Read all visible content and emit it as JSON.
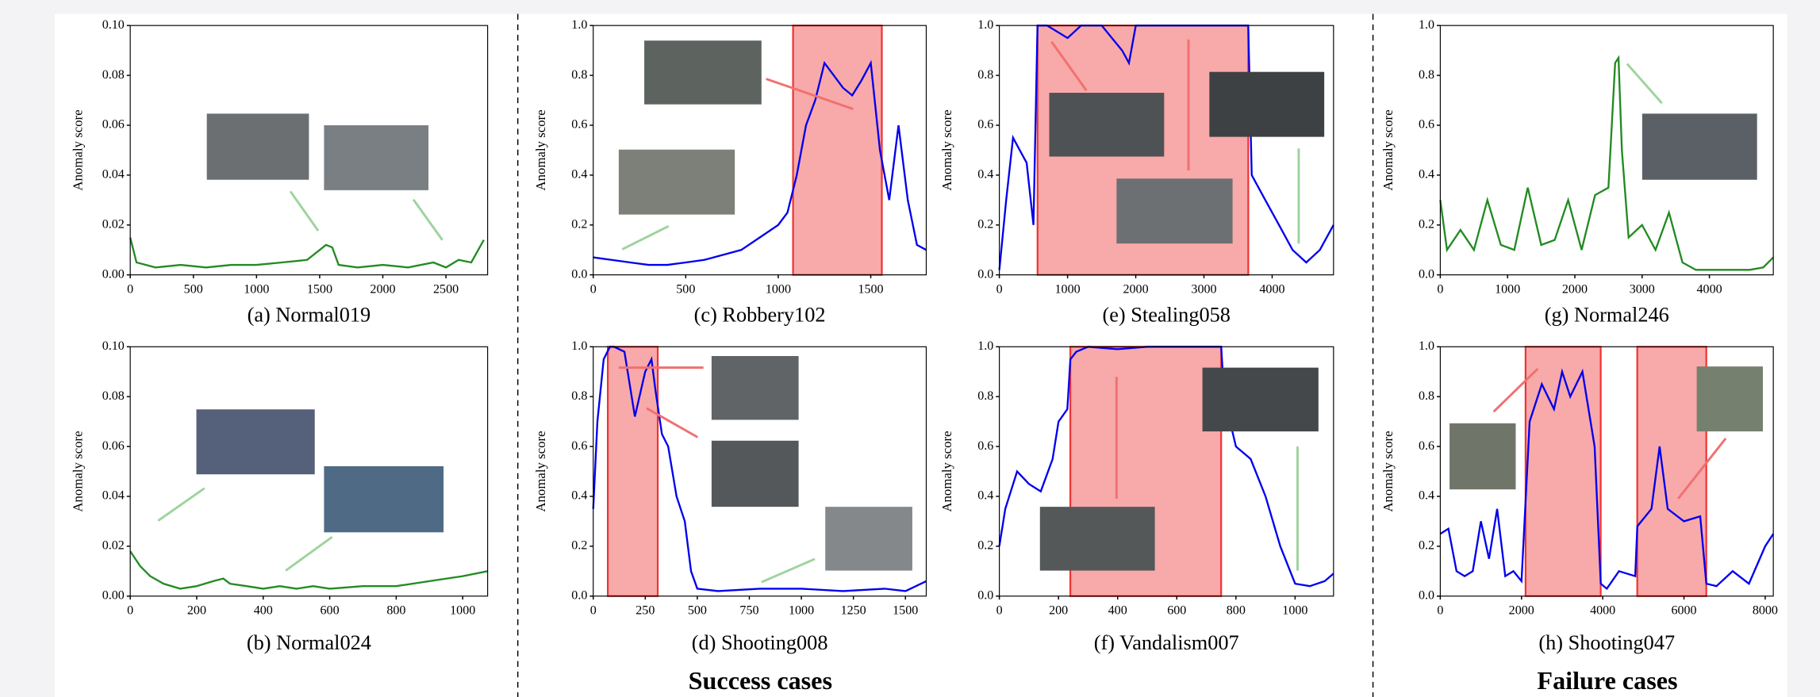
{
  "chart_data": [
    {
      "type": "line",
      "caption": "(a) Normal019",
      "ylabel": "Anomaly score",
      "color": "#228b22",
      "x": [
        0,
        50,
        200,
        400,
        600,
        800,
        1000,
        1200,
        1400,
        1500,
        1550,
        1600,
        1650,
        1800,
        2000,
        2200,
        2400,
        2500,
        2600,
        2700,
        2800
      ],
      "values": [
        0.015,
        0.005,
        0.003,
        0.004,
        0.003,
        0.004,
        0.004,
        0.005,
        0.006,
        0.01,
        0.012,
        0.011,
        0.004,
        0.003,
        0.004,
        0.003,
        0.005,
        0.003,
        0.006,
        0.005,
        0.014
      ],
      "xlim": [
        0,
        2830
      ],
      "xticks": [
        0,
        500,
        1000,
        1500,
        2000,
        2500
      ],
      "ylim": [
        0,
        0.1
      ],
      "yticks": [
        {
          "value": 0,
          "label": "0.00"
        },
        {
          "value": 0.02,
          "label": "0.02"
        },
        {
          "value": 0.04,
          "label": "0.04"
        },
        {
          "value": 0.06,
          "label": "0.06"
        },
        {
          "value": 0.08,
          "label": "0.08"
        },
        {
          "value": 0.1,
          "label": "0.10"
        }
      ]
    },
    {
      "type": "line",
      "caption": "(b) Normal024",
      "ylabel": "Anomaly score",
      "color": "#228b22",
      "x": [
        0,
        30,
        60,
        100,
        150,
        200,
        250,
        280,
        300,
        350,
        400,
        450,
        500,
        550,
        600,
        700,
        800,
        900,
        1000,
        1075
      ],
      "values": [
        0.018,
        0.012,
        0.008,
        0.005,
        0.003,
        0.004,
        0.006,
        0.007,
        0.005,
        0.004,
        0.003,
        0.004,
        0.003,
        0.004,
        0.003,
        0.004,
        0.004,
        0.006,
        0.008,
        0.01
      ],
      "xlim": [
        0,
        1075
      ],
      "xticks": [
        0,
        200,
        400,
        600,
        800,
        1000
      ],
      "ylim": [
        0,
        0.1
      ],
      "yticks": [
        {
          "value": 0,
          "label": "0.00"
        },
        {
          "value": 0.02,
          "label": "0.02"
        },
        {
          "value": 0.04,
          "label": "0.04"
        },
        {
          "value": 0.06,
          "label": "0.06"
        },
        {
          "value": 0.08,
          "label": "0.08"
        },
        {
          "value": 0.1,
          "label": "0.10"
        }
      ]
    },
    {
      "type": "line",
      "caption": "(c) Robbery102",
      "ylabel": "Anomaly score",
      "color": "#0000ee",
      "anomaly_spans": [
        [
          1080,
          1560
        ]
      ],
      "span_color": "#f8a9a9",
      "x": [
        0,
        100,
        200,
        300,
        400,
        500,
        600,
        700,
        800,
        900,
        1000,
        1050,
        1100,
        1150,
        1200,
        1250,
        1300,
        1350,
        1400,
        1450,
        1500,
        1550,
        1600,
        1650,
        1700,
        1750,
        1800
      ],
      "values": [
        0.07,
        0.06,
        0.05,
        0.04,
        0.04,
        0.05,
        0.06,
        0.08,
        0.1,
        0.15,
        0.2,
        0.25,
        0.4,
        0.6,
        0.7,
        0.85,
        0.8,
        0.75,
        0.72,
        0.78,
        0.85,
        0.5,
        0.3,
        0.6,
        0.3,
        0.12,
        0.1
      ],
      "xlim": [
        0,
        1800
      ],
      "xticks": [
        0,
        500,
        1000,
        1500
      ],
      "ylim": [
        0,
        1
      ],
      "yticks": [
        {
          "value": 0,
          "label": "0.0"
        },
        {
          "value": 0.2,
          "label": "0.2"
        },
        {
          "value": 0.4,
          "label": "0.4"
        },
        {
          "value": 0.6,
          "label": "0.6"
        },
        {
          "value": 0.8,
          "label": "0.8"
        },
        {
          "value": 1,
          "label": "1.0"
        }
      ]
    },
    {
      "type": "line",
      "caption": "(d) Shooting008",
      "ylabel": "Anomaly score",
      "color": "#0000ee",
      "anomaly_spans": [
        [
          70,
          310
        ]
      ],
      "span_color": "#f8a9a9",
      "x": [
        0,
        20,
        50,
        80,
        100,
        150,
        200,
        250,
        280,
        300,
        330,
        360,
        400,
        440,
        470,
        500,
        600,
        800,
        1000,
        1200,
        1400,
        1500,
        1600
      ],
      "values": [
        0.35,
        0.7,
        0.95,
        1.0,
        1.0,
        0.98,
        0.72,
        0.9,
        0.95,
        0.82,
        0.65,
        0.6,
        0.4,
        0.3,
        0.1,
        0.03,
        0.02,
        0.03,
        0.03,
        0.02,
        0.03,
        0.02,
        0.06
      ],
      "xlim": [
        0,
        1600
      ],
      "xticks": [
        0,
        250,
        500,
        750,
        1000,
        1250,
        1500
      ],
      "ylim": [
        0,
        1
      ],
      "yticks": [
        {
          "value": 0,
          "label": "0.0"
        },
        {
          "value": 0.2,
          "label": "0.2"
        },
        {
          "value": 0.4,
          "label": "0.4"
        },
        {
          "value": 0.6,
          "label": "0.6"
        },
        {
          "value": 0.8,
          "label": "0.8"
        },
        {
          "value": 1,
          "label": "1.0"
        }
      ]
    },
    {
      "type": "line",
      "caption": "(e) Stealing058",
      "ylabel": "Anomaly score",
      "color": "#0000ee",
      "anomaly_spans": [
        [
          560,
          3650
        ]
      ],
      "span_color": "#f8a9a9",
      "x": [
        0,
        100,
        200,
        300,
        400,
        500,
        560,
        700,
        1000,
        1200,
        1500,
        1800,
        1900,
        2000,
        2500,
        3000,
        3500,
        3650,
        3700,
        3900,
        4100,
        4300,
        4500,
        4700,
        4900
      ],
      "values": [
        0.02,
        0.3,
        0.55,
        0.5,
        0.45,
        0.2,
        1.0,
        1.0,
        0.95,
        1.0,
        1.0,
        0.9,
        0.85,
        1.0,
        1.0,
        1.0,
        1.0,
        1.0,
        0.4,
        0.3,
        0.2,
        0.1,
        0.05,
        0.1,
        0.2
      ],
      "xlim": [
        0,
        4900
      ],
      "xticks": [
        0,
        1000,
        2000,
        3000,
        4000
      ],
      "ylim": [
        0,
        1
      ],
      "yticks": [
        {
          "value": 0,
          "label": "0.0"
        },
        {
          "value": 0.2,
          "label": "0.2"
        },
        {
          "value": 0.4,
          "label": "0.4"
        },
        {
          "value": 0.6,
          "label": "0.6"
        },
        {
          "value": 0.8,
          "label": "0.8"
        },
        {
          "value": 1,
          "label": "1.0"
        }
      ]
    },
    {
      "type": "line",
      "caption": "(f) Vandalism007",
      "ylabel": "Anomaly score",
      "color": "#0000ee",
      "anomaly_spans": [
        [
          240,
          750
        ]
      ],
      "span_color": "#f8a9a9",
      "x": [
        0,
        20,
        60,
        100,
        140,
        180,
        200,
        230,
        240,
        260,
        300,
        400,
        500,
        600,
        700,
        750,
        760,
        800,
        850,
        900,
        950,
        1000,
        1050,
        1100,
        1130
      ],
      "values": [
        0.2,
        0.35,
        0.5,
        0.45,
        0.42,
        0.55,
        0.7,
        0.75,
        0.95,
        0.98,
        1.0,
        0.99,
        1.0,
        1.0,
        1.0,
        1.0,
        0.8,
        0.6,
        0.55,
        0.4,
        0.2,
        0.05,
        0.04,
        0.06,
        0.09
      ],
      "xlim": [
        0,
        1130
      ],
      "xticks": [
        0,
        200,
        400,
        600,
        800,
        1000
      ],
      "ylim": [
        0,
        1
      ],
      "yticks": [
        {
          "value": 0,
          "label": "0.0"
        },
        {
          "value": 0.2,
          "label": "0.2"
        },
        {
          "value": 0.4,
          "label": "0.4"
        },
        {
          "value": 0.6,
          "label": "0.6"
        },
        {
          "value": 0.8,
          "label": "0.8"
        },
        {
          "value": 1,
          "label": "1.0"
        }
      ]
    },
    {
      "type": "line",
      "caption": "(g) Normal246",
      "ylabel": "Anomaly score",
      "color": "#228b22",
      "x": [
        0,
        100,
        300,
        500,
        700,
        900,
        1100,
        1300,
        1500,
        1700,
        1900,
        2100,
        2300,
        2500,
        2600,
        2650,
        2700,
        2800,
        3000,
        3200,
        3400,
        3600,
        3800,
        4000,
        4200,
        4400,
        4600,
        4800,
        4950
      ],
      "values": [
        0.3,
        0.1,
        0.18,
        0.1,
        0.3,
        0.12,
        0.1,
        0.35,
        0.12,
        0.14,
        0.3,
        0.1,
        0.32,
        0.35,
        0.85,
        0.87,
        0.5,
        0.15,
        0.2,
        0.1,
        0.25,
        0.05,
        0.02,
        0.02,
        0.02,
        0.02,
        0.02,
        0.03,
        0.07
      ],
      "xlim": [
        0,
        4950
      ],
      "xticks": [
        0,
        1000,
        2000,
        3000,
        4000
      ],
      "ylim": [
        0,
        1
      ],
      "yticks": [
        {
          "value": 0,
          "label": "0.0"
        },
        {
          "value": 0.2,
          "label": "0.2"
        },
        {
          "value": 0.4,
          "label": "0.4"
        },
        {
          "value": 0.6,
          "label": "0.6"
        },
        {
          "value": 0.8,
          "label": "0.8"
        },
        {
          "value": 1,
          "label": "1.0"
        }
      ]
    },
    {
      "type": "line",
      "caption": "(h) Shooting047",
      "ylabel": "Anomaly score",
      "color": "#0000ee",
      "anomaly_spans": [
        [
          2100,
          3950
        ],
        [
          4850,
          6550
        ]
      ],
      "span_color": "#f8a9a9",
      "x": [
        0,
        200,
        400,
        600,
        800,
        1000,
        1200,
        1400,
        1600,
        1800,
        2000,
        2200,
        2500,
        2800,
        3000,
        3200,
        3500,
        3800,
        3950,
        4100,
        4400,
        4800,
        4850,
        5200,
        5400,
        5600,
        6000,
        6400,
        6550,
        6800,
        7200,
        7600,
        8000,
        8200
      ],
      "values": [
        0.25,
        0.27,
        0.1,
        0.08,
        0.1,
        0.3,
        0.15,
        0.35,
        0.08,
        0.1,
        0.06,
        0.7,
        0.85,
        0.75,
        0.9,
        0.8,
        0.9,
        0.6,
        0.05,
        0.03,
        0.1,
        0.08,
        0.28,
        0.35,
        0.6,
        0.35,
        0.3,
        0.32,
        0.05,
        0.04,
        0.1,
        0.05,
        0.2,
        0.25
      ],
      "xlim": [
        0,
        8200
      ],
      "xticks": [
        0,
        2000,
        4000,
        6000,
        8000
      ],
      "ylim": [
        0,
        1
      ],
      "yticks": [
        {
          "value": 0,
          "label": "0.0"
        },
        {
          "value": 0.2,
          "label": "0.2"
        },
        {
          "value": 0.4,
          "label": "0.4"
        },
        {
          "value": 0.6,
          "label": "0.6"
        },
        {
          "value": 0.8,
          "label": "0.8"
        },
        {
          "value": 1,
          "label": "1.0"
        }
      ]
    }
  ],
  "group_labels": [
    "Success cases",
    "Failure cases"
  ]
}
